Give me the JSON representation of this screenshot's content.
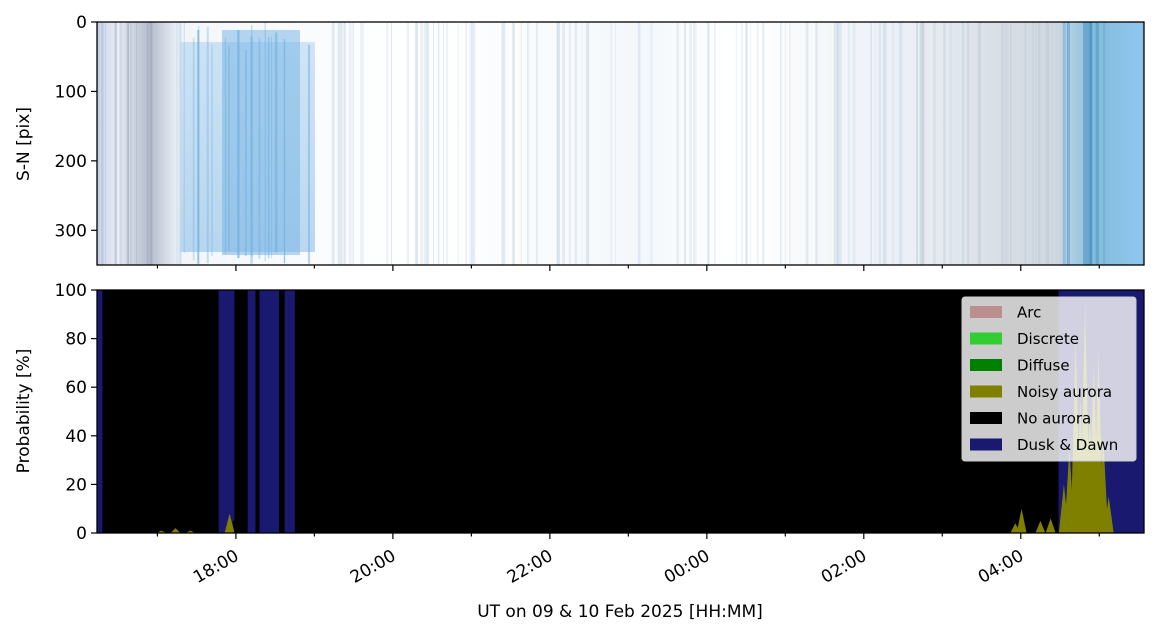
{
  "chart_data": [
    {
      "type": "heatmap",
      "ylabel": "S-N [pix]",
      "yticks": [
        "0",
        "100",
        "200",
        "300"
      ],
      "ylim": [
        350,
        0
      ],
      "xlim_hours": [
        16.23,
        29.57
      ],
      "note_colormap": "blues"
    },
    {
      "type": "area",
      "ylabel": "Probability [%]",
      "xlabel": "UT on 09 & 10 Feb 2025 [HH:MM]",
      "ylim": [
        0,
        100
      ],
      "yticks": [
        "0",
        "20",
        "40",
        "60",
        "80",
        "100"
      ],
      "xticks": [
        {
          "hour": 18,
          "label": "18:00"
        },
        {
          "hour": 20,
          "label": "20:00"
        },
        {
          "hour": 22,
          "label": "22:00"
        },
        {
          "hour": 24,
          "label": "00:00"
        },
        {
          "hour": 26,
          "label": "02:00"
        },
        {
          "hour": 28,
          "label": "04:00"
        }
      ],
      "legend_placement": "upper right",
      "legend": [
        {
          "label": "Arc",
          "color": "#bc8f8f"
        },
        {
          "label": "Discrete",
          "color": "#32cd32"
        },
        {
          "label": "Diffuse",
          "color": "#008000"
        },
        {
          "label": "Noisy aurora",
          "color": "#808000"
        },
        {
          "label": "No aurora",
          "color": "#000000"
        },
        {
          "label": "Dusk & Dawn",
          "color": "#191970"
        }
      ],
      "series": [
        {
          "name": "Dusk & Dawn",
          "color": "#191970",
          "segments": [
            {
              "start": 16.23,
              "end": 16.3,
              "value": 100
            },
            {
              "start": 17.78,
              "end": 17.98,
              "value": 100
            },
            {
              "start": 18.15,
              "end": 18.25,
              "value": 100
            },
            {
              "start": 18.3,
              "end": 18.55,
              "value": 100
            },
            {
              "start": 18.62,
              "end": 18.75,
              "value": 100
            },
            {
              "start": 28.48,
              "end": 29.57,
              "value": 100
            }
          ]
        },
        {
          "name": "Noisy aurora",
          "color": "#808000",
          "peaks": [
            {
              "hour": 17.05,
              "value": 1
            },
            {
              "hour": 17.23,
              "value": 2
            },
            {
              "hour": 17.42,
              "value": 1
            },
            {
              "hour": 17.92,
              "value": 8
            },
            {
              "hour": 27.93,
              "value": 4
            },
            {
              "hour": 28.01,
              "value": 10
            },
            {
              "hour": 28.25,
              "value": 5
            },
            {
              "hour": 28.38,
              "value": 6
            },
            {
              "hour": 28.55,
              "value": 20
            },
            {
              "hour": 28.62,
              "value": 35
            },
            {
              "hour": 28.7,
              "value": 80
            },
            {
              "hour": 28.76,
              "value": 55
            },
            {
              "hour": 28.82,
              "value": 95
            },
            {
              "hour": 28.88,
              "value": 50
            },
            {
              "hour": 28.93,
              "value": 70
            },
            {
              "hour": 28.99,
              "value": 75
            },
            {
              "hour": 29.05,
              "value": 40
            },
            {
              "hour": 29.12,
              "value": 15
            }
          ]
        },
        {
          "name": "No aurora",
          "color": "#000000",
          "note": "fills remainder to 100%"
        }
      ]
    }
  ]
}
